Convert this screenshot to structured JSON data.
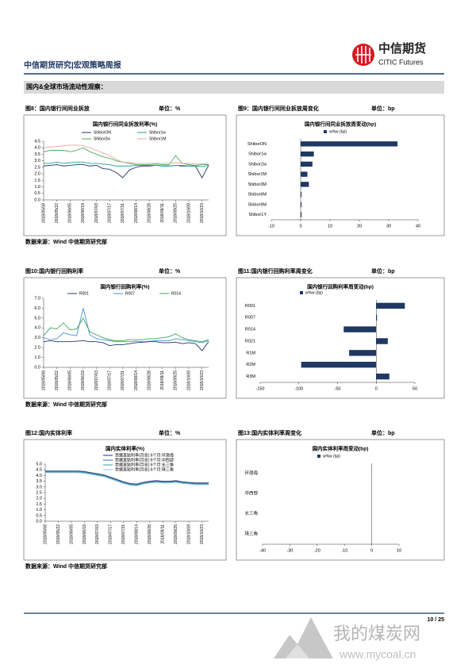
{
  "header": {
    "title": "中信期货研究|宏观策略周报",
    "logo_cn": "中信期货",
    "logo_en": "CITIC Futures"
  },
  "section": "国内&全球市场流动性观察：",
  "figures": [
    {
      "caption": "图8：国内银行间同业拆放",
      "unit": "单位：%",
      "source": "数据来源：Wind 中信期货研究部"
    },
    {
      "caption": "图9：国内银行间同业拆放周变化",
      "unit": "单位：bp"
    },
    {
      "caption": "图10:国内银行回购利率",
      "unit": "单位：%",
      "source": "数据来源：Wind 中信期货研究部"
    },
    {
      "caption": "图11:国内银行回购利率周变化",
      "unit": "单位：bp"
    },
    {
      "caption": "图12:国内实体利率",
      "unit": "单位：%",
      "source": "数据来源：Wind 中信期货研究部"
    },
    {
      "caption": "图13:国内实体利率周变化",
      "unit": "单位：bp"
    }
  ],
  "chart_data": [
    {
      "type": "line",
      "title": "国内银行间同业拆放利率(%)",
      "grid": false,
      "categories": [
        "2018/05/08",
        null,
        "2018/05/22",
        null,
        "2018/06/05",
        null,
        "2018/06/19",
        null,
        "2018/07/03",
        null,
        "2018/07/17",
        null,
        "2018/07/31",
        null,
        "2018/08/14",
        null,
        "2018/08/28",
        null,
        "2018/09/11",
        null,
        "2018/09/25",
        null,
        "2018/10/09",
        null,
        "2018/10/23",
        null
      ],
      "ylim": [
        0,
        4.5
      ],
      "yticks": [
        {
          "value": 0,
          "label": "0.0"
        },
        0.5,
        {
          "value": 1,
          "label": "1.0"
        },
        1.5,
        {
          "value": 2,
          "label": "2.0"
        },
        2.5,
        {
          "value": 3,
          "label": "3.0"
        },
        3.5,
        {
          "value": 4,
          "label": "4.0"
        },
        4.5
      ],
      "series": [
        {
          "name": "ShiborON",
          "color": "#1f3864",
          "values": [
            2.6,
            2.65,
            2.7,
            2.6,
            2.65,
            2.7,
            2.7,
            2.6,
            2.65,
            2.4,
            2.35,
            2.1,
            1.7,
            2.3,
            2.5,
            2.6,
            2.6,
            2.65,
            2.6,
            2.6,
            2.65,
            2.6,
            2.6,
            2.6,
            1.7,
            2.65
          ]
        },
        {
          "name": "Shibor1w",
          "color": "#2aa198",
          "values": [
            2.8,
            2.8,
            2.9,
            2.8,
            2.85,
            2.9,
            2.9,
            2.8,
            2.8,
            2.75,
            2.7,
            2.6,
            2.6,
            2.6,
            2.65,
            2.65,
            2.65,
            2.65,
            2.6,
            2.6,
            2.65,
            2.65,
            2.6,
            2.6,
            2.55,
            2.65
          ]
        },
        {
          "name": "Shibor2w",
          "color": "#4caf50",
          "values": [
            3.7,
            3.8,
            3.8,
            3.8,
            3.7,
            3.8,
            4.0,
            3.7,
            3.5,
            3.3,
            3.2,
            3.0,
            2.9,
            2.8,
            2.7,
            2.7,
            2.7,
            2.75,
            2.7,
            2.7,
            3.4,
            2.8,
            2.7,
            2.65,
            2.7,
            2.7
          ]
        },
        {
          "name": "Shibor1M",
          "color": "#e6a5a5",
          "values": [
            4.0,
            4.05,
            4.1,
            4.15,
            4.2,
            4.2,
            4.15,
            4.0,
            3.8,
            3.6,
            3.4,
            3.1,
            2.9,
            2.85,
            2.8,
            2.8,
            2.8,
            2.8,
            2.8,
            2.8,
            2.85,
            2.8,
            2.8,
            2.75,
            2.75,
            2.8
          ]
        }
      ]
    },
    {
      "type": "bar",
      "orientation": "horizontal",
      "title": "国内银行间同业拆放周变动(bp)",
      "categories": [
        "ShiborON",
        "Shibor1w",
        "Shibor2w",
        "Shibor1M",
        "Shibor3M",
        "Shibor6M",
        "Shibor9M",
        "Shibor1Y"
      ],
      "xlim": [
        -10,
        40
      ],
      "xticks": [
        -10,
        0,
        10,
        20,
        30,
        40
      ],
      "series": [
        {
          "name": "w%w (bp)",
          "color": "#1f3864",
          "values": [
            33,
            4.5,
            4,
            2.3,
            2.8,
            0.3,
            0.3,
            0.3
          ]
        }
      ]
    },
    {
      "type": "line",
      "title": "国内银行回购利率(%)",
      "grid": false,
      "categories": [
        "2018/05/08",
        null,
        "2018/05/22",
        null,
        "2018/06/05",
        null,
        "2018/06/19",
        null,
        "2018/07/03",
        null,
        "2018/07/17",
        null,
        "2018/07/31",
        null,
        "2018/08/14",
        null,
        "2018/08/28",
        null,
        "2018/09/11",
        null,
        "2018/09/25",
        null,
        "2018/10/09",
        null,
        "2018/10/23",
        null
      ],
      "ylim": [
        0,
        7
      ],
      "yticks": [
        {
          "value": 0,
          "label": "0.0"
        },
        {
          "value": 1,
          "label": "1.0"
        },
        {
          "value": 2,
          "label": "2.0"
        },
        {
          "value": 3,
          "label": "3.0"
        },
        {
          "value": 4,
          "label": "4.0"
        },
        {
          "value": 5,
          "label": "5.0"
        },
        {
          "value": 6,
          "label": "6.0"
        },
        {
          "value": 7,
          "label": "7.0"
        }
      ],
      "series": [
        {
          "name": "R001",
          "color": "#1f3864",
          "values": [
            2.6,
            2.7,
            2.6,
            2.6,
            2.6,
            2.65,
            2.7,
            2.6,
            2.6,
            2.5,
            2.2,
            2.3,
            2.3,
            2.4,
            2.5,
            2.55,
            2.6,
            2.6,
            2.5,
            2.5,
            2.55,
            2.4,
            2.5,
            2.4,
            1.7,
            2.6
          ]
        },
        {
          "name": "R007",
          "color": "#4a90d9",
          "values": [
            3.0,
            2.8,
            2.9,
            3.5,
            3.3,
            3.2,
            6.0,
            3.3,
            2.9,
            2.8,
            2.7,
            2.6,
            2.6,
            2.6,
            2.65,
            2.6,
            2.65,
            2.7,
            2.7,
            2.7,
            2.9,
            2.8,
            2.7,
            2.6,
            2.5,
            2.7
          ]
        },
        {
          "name": "R014",
          "color": "#3aa65a",
          "values": [
            3.2,
            4.0,
            3.9,
            4.5,
            3.8,
            3.9,
            5.0,
            3.6,
            3.3,
            3.0,
            2.8,
            2.7,
            2.7,
            2.8,
            2.8,
            2.8,
            2.9,
            2.9,
            3.0,
            3.1,
            3.4,
            3.0,
            2.8,
            2.7,
            2.6,
            2.8
          ]
        }
      ]
    },
    {
      "type": "bar",
      "orientation": "horizontal",
      "title": "国内银行回购利率周变动(bp)",
      "categories": [
        "R001",
        "R007",
        "R014",
        "R021",
        "R1M",
        "R2M",
        "R3M"
      ],
      "xlim": [
        -150,
        50
      ],
      "xticks": [
        -150,
        -100,
        -50,
        0,
        50
      ],
      "series": [
        {
          "name": "w%w (bp)",
          "color": "#1f3864",
          "values": [
            37,
            1,
            -42,
            15,
            -35,
            -97,
            17
          ]
        }
      ]
    },
    {
      "type": "line",
      "title": "国内实体利率(%)",
      "grid": false,
      "categories": [
        "2018/05/08",
        null,
        "2018/05/22",
        null,
        "2018/06/05",
        null,
        "2018/06/19",
        null,
        "2018/07/03",
        null,
        "2018/07/17",
        null,
        "2018/07/31",
        null,
        "2018/08/14",
        null,
        "2018/08/28",
        null,
        "2018/09/11",
        null,
        "2018/09/25",
        null,
        "2018/10/09",
        null,
        "2018/10/23",
        null
      ],
      "ylim": [
        0,
        5
      ],
      "yticks": [
        {
          "value": 0,
          "label": "0.0"
        },
        0.5,
        {
          "value": 1,
          "label": "1.0"
        },
        1.5,
        {
          "value": 2,
          "label": "2.0"
        },
        2.5,
        {
          "value": 3,
          "label": "3.0"
        },
        3.5,
        {
          "value": 4,
          "label": "4.0"
        },
        4.5,
        {
          "value": 5,
          "label": "5.0"
        }
      ],
      "series": [
        {
          "name": "票据直贴利率(月息):6个月:环渤海",
          "color": "#1f3864",
          "values": [
            4.4,
            4.4,
            4.4,
            4.4,
            4.4,
            4.4,
            4.35,
            4.25,
            4.15,
            4.05,
            3.85,
            3.65,
            3.45,
            3.3,
            3.25,
            3.4,
            3.5,
            3.55,
            3.5,
            3.5,
            3.55,
            3.45,
            3.4,
            3.35,
            3.35,
            3.35
          ]
        },
        {
          "name": "票据直贴利率(月息):6个月:中西部",
          "color": "#2e75b6",
          "values": [
            4.35,
            4.35,
            4.35,
            4.35,
            4.35,
            4.35,
            4.3,
            4.2,
            4.1,
            4.0,
            3.8,
            3.6,
            3.4,
            3.25,
            3.2,
            3.35,
            3.45,
            3.5,
            3.45,
            3.45,
            3.5,
            3.4,
            3.35,
            3.3,
            3.3,
            3.3
          ]
        },
        {
          "name": "票据直贴利率(月息):6个月:长三角",
          "color": "#3b9b9b",
          "values": [
            4.3,
            4.3,
            4.3,
            4.3,
            4.3,
            4.3,
            4.25,
            4.15,
            4.05,
            3.95,
            3.75,
            3.55,
            3.35,
            3.2,
            3.15,
            3.3,
            3.4,
            3.45,
            3.4,
            3.4,
            3.45,
            3.35,
            3.3,
            3.25,
            3.25,
            3.25
          ]
        },
        {
          "name": "票据直贴利率(月息):6个月:珠三角",
          "color": "#9dc3e6",
          "values": [
            4.25,
            4.25,
            4.25,
            4.25,
            4.25,
            4.25,
            4.2,
            4.1,
            4.0,
            3.9,
            3.7,
            3.5,
            3.3,
            3.15,
            3.1,
            3.25,
            3.35,
            3.4,
            3.35,
            3.35,
            3.4,
            3.3,
            3.25,
            3.2,
            3.2,
            3.2
          ]
        }
      ]
    },
    {
      "type": "bar",
      "orientation": "horizontal",
      "title": "国内实体利率周变动(bp)",
      "categories": [
        "环渤海",
        "中西部",
        "长三角",
        "珠三角"
      ],
      "xlim": [
        -40,
        10
      ],
      "xticks": [
        -40,
        -30,
        -20,
        -10,
        0,
        10
      ],
      "series": [
        {
          "name": "w%w (bp)",
          "color": "#1f3864",
          "values": [
            0,
            0,
            0,
            0
          ]
        }
      ]
    }
  ],
  "footer": {
    "page": "10 / 25"
  },
  "watermark": {
    "cn": "我的煤炭网",
    "url": "www.mycoal.cn"
  }
}
